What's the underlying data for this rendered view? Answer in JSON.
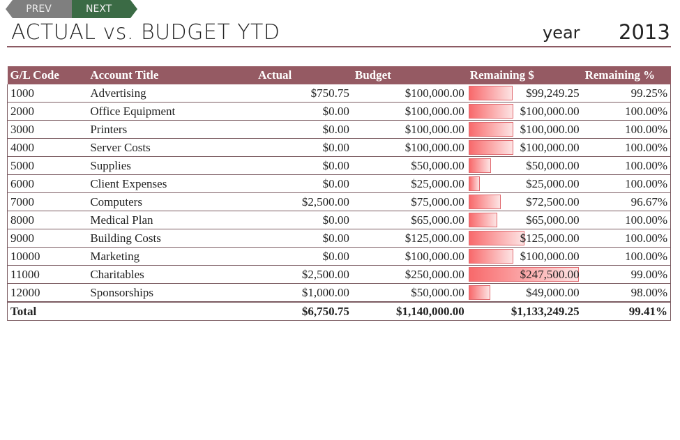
{
  "nav": {
    "prev": "PREV",
    "next": "NEXT"
  },
  "header": {
    "title": "ACTUAL vs. BUDGET YTD",
    "year_label": "year",
    "year": "2013"
  },
  "table": {
    "columns": [
      "G/L Code",
      "Account Title",
      "Actual",
      "Budget",
      "Remaining $",
      "Remaining %"
    ],
    "rows": [
      {
        "code": "1000",
        "title": "Advertising",
        "actual": "$750.75",
        "budget": "$100,000.00",
        "remaining": "$99,249.25",
        "pct": "99.25%"
      },
      {
        "code": "2000",
        "title": "Office Equipment",
        "actual": "$0.00",
        "budget": "$100,000.00",
        "remaining": "$100,000.00",
        "pct": "100.00%"
      },
      {
        "code": "3000",
        "title": "Printers",
        "actual": "$0.00",
        "budget": "$100,000.00",
        "remaining": "$100,000.00",
        "pct": "100.00%"
      },
      {
        "code": "4000",
        "title": "Server Costs",
        "actual": "$0.00",
        "budget": "$100,000.00",
        "remaining": "$100,000.00",
        "pct": "100.00%"
      },
      {
        "code": "5000",
        "title": "Supplies",
        "actual": "$0.00",
        "budget": "$50,000.00",
        "remaining": "$50,000.00",
        "pct": "100.00%"
      },
      {
        "code": "6000",
        "title": "Client Expenses",
        "actual": "$0.00",
        "budget": "$25,000.00",
        "remaining": "$25,000.00",
        "pct": "100.00%"
      },
      {
        "code": "7000",
        "title": "Computers",
        "actual": "$2,500.00",
        "budget": "$75,000.00",
        "remaining": "$72,500.00",
        "pct": "96.67%"
      },
      {
        "code": "8000",
        "title": "Medical Plan",
        "actual": "$0.00",
        "budget": "$65,000.00",
        "remaining": "$65,000.00",
        "pct": "100.00%"
      },
      {
        "code": "9000",
        "title": "Building Costs",
        "actual": "$0.00",
        "budget": "$125,000.00",
        "remaining": "$125,000.00",
        "pct": "100.00%"
      },
      {
        "code": "10000",
        "title": "Marketing",
        "actual": "$0.00",
        "budget": "$100,000.00",
        "remaining": "$100,000.00",
        "pct": "100.00%"
      },
      {
        "code": "11000",
        "title": "Charitables",
        "actual": "$2,500.00",
        "budget": "$250,000.00",
        "remaining": "$247,500.00",
        "pct": "99.00%"
      },
      {
        "code": "12000",
        "title": "Sponsorships",
        "actual": "$1,000.00",
        "budget": "$50,000.00",
        "remaining": "$49,000.00",
        "pct": "98.00%"
      }
    ],
    "total": {
      "label": "Total",
      "actual": "$6,750.75",
      "budget": "$1,140,000.00",
      "remaining": "$1,133,249.25",
      "pct": "99.41%"
    }
  },
  "colors": {
    "header_bg": "#955a63",
    "bar": "#f8696b",
    "next_bg": "#3b6b45",
    "prev_bg": "#7f7f7f"
  }
}
